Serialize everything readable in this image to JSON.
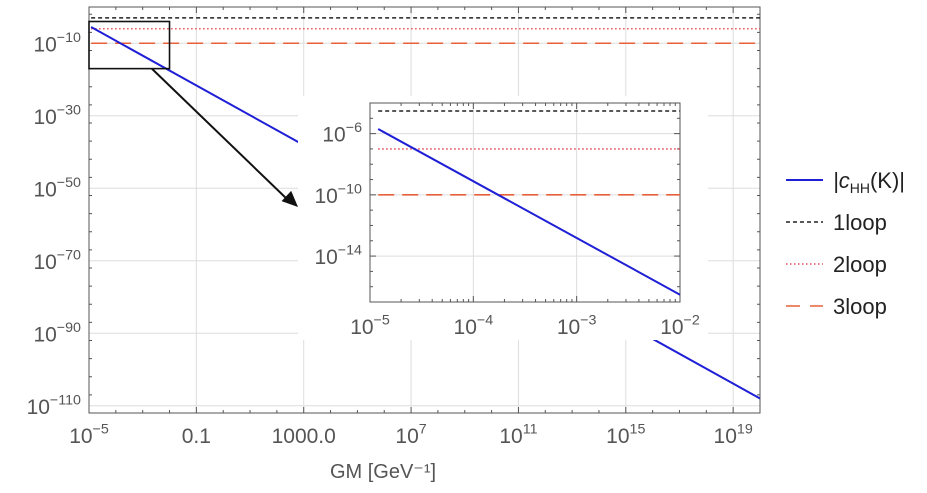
{
  "chart_data": {
    "type": "line",
    "xlabel": "GM [GeV⁻¹]",
    "x_scale": "log",
    "y_scale": "log",
    "xlim": [
      1e-05,
      1e+20
    ],
    "ylim": [
      1e-112,
      1.0
    ],
    "grid": true,
    "legend_position": "right",
    "x_ticks": [
      {
        "value": 1e-05,
        "base": "10",
        "exp": "−5"
      },
      {
        "value": 0.1,
        "text": "0.1"
      },
      {
        "value": 1000,
        "text": "1000.0"
      },
      {
        "value": 10000000.0,
        "base": "10",
        "exp": "7"
      },
      {
        "value": 100000000000.0,
        "base": "10",
        "exp": "11"
      },
      {
        "value": 1000000000000000.0,
        "base": "10",
        "exp": "15"
      },
      {
        "value": 1e+19,
        "base": "10",
        "exp": "19"
      }
    ],
    "y_ticks": [
      {
        "value": 1e-10,
        "base": "10",
        "exp": "−10"
      },
      {
        "value": 1e-30,
        "base": "10",
        "exp": "−30"
      },
      {
        "value": 1e-50,
        "base": "10",
        "exp": "−50"
      },
      {
        "value": 1e-70,
        "base": "10",
        "exp": "−70"
      },
      {
        "value": 1e-90,
        "base": "10",
        "exp": "−90"
      },
      {
        "value": 1e-110,
        "base": "10",
        "exp": "−110"
      }
    ],
    "series": [
      {
        "name": "|c_HH(K)|",
        "style": "solid",
        "color": "#1f1fd6",
        "x": [
          1.2e-05,
          1e+20
        ],
        "y": [
          3e-06,
          1e-108
        ]
      },
      {
        "name": "1loop",
        "style": "dashed-fine",
        "color": "#222222",
        "x": [
          1.2e-05,
          1e+20
        ],
        "y": [
          0.001,
          0.001
        ]
      },
      {
        "name": "2loop",
        "style": "dotted",
        "color": "#e8505b",
        "x": [
          1.2e-05,
          1e+20
        ],
        "y": [
          1e-06,
          1e-06
        ]
      },
      {
        "name": "3loop",
        "style": "dashed-long",
        "color": "#e8603a",
        "x": [
          1.2e-05,
          1e+20
        ],
        "y": [
          1e-10,
          1e-10
        ]
      }
    ],
    "inset": {
      "xlim": [
        1e-05,
        0.01
      ],
      "ylim": [
        1e-17,
        0.0001
      ],
      "x_ticks": [
        {
          "value": 1e-05,
          "base": "10",
          "exp": "−5"
        },
        {
          "value": 0.0001,
          "base": "10",
          "exp": "−4"
        },
        {
          "value": 0.001,
          "base": "10",
          "exp": "−3"
        },
        {
          "value": 0.01,
          "base": "10",
          "exp": "−2"
        }
      ],
      "y_ticks": [
        {
          "value": 1e-06,
          "base": "10",
          "exp": "−6"
        },
        {
          "value": 1e-10,
          "base": "10",
          "exp": "−10"
        },
        {
          "value": 1e-14,
          "base": "10",
          "exp": "−14"
        }
      ],
      "series": [
        {
          "name": "|c_HH(K)|",
          "x": [
            1.2e-05,
            0.01
          ],
          "y": [
            2e-06,
            3e-17
          ]
        },
        {
          "name": "1loop",
          "x": [
            1.2e-05,
            0.01
          ],
          "y": [
            3e-05,
            3e-05
          ]
        },
        {
          "name": "2loop",
          "x": [
            1.2e-05,
            0.01
          ],
          "y": [
            1e-07,
            1e-07
          ]
        },
        {
          "name": "3loop",
          "x": [
            1.2e-05,
            0.01
          ],
          "y": [
            1e-10,
            1e-10
          ]
        }
      ]
    },
    "zoom_box": {
      "xlim": [
        1e-05,
        0.01
      ],
      "ylim": [
        1e-17,
        0.0001
      ]
    }
  },
  "legend": [
    {
      "key": "c",
      "main": "|c",
      "sub": "HH",
      "tail": "(K)|"
    },
    {
      "key": "1",
      "text": "1loop"
    },
    {
      "key": "2",
      "text": "2loop"
    },
    {
      "key": "3",
      "text": "3loop"
    }
  ],
  "colors": {
    "frame": "#555555",
    "grid": "#dddddd",
    "curve": "#1f1fd6",
    "loop1": "#222222",
    "loop2": "#e8505b",
    "loop3": "#e8603a"
  }
}
